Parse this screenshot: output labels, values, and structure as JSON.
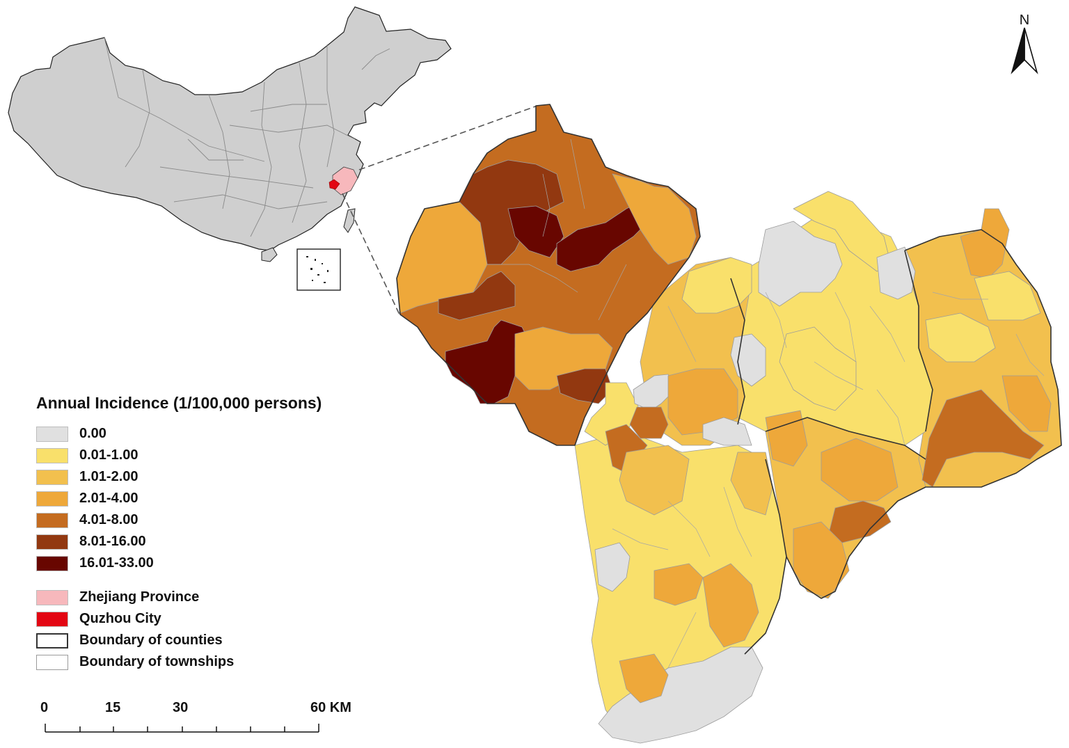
{
  "legend": {
    "title": "Annual Incidence (1/100,000 persons)",
    "classes": [
      {
        "label": "0.00",
        "color": "#e0e0e0"
      },
      {
        "label": "0.01-1.00",
        "color": "#f9e06b"
      },
      {
        "label": "1.01-2.00",
        "color": "#f2c04e"
      },
      {
        "label": "2.01-4.00",
        "color": "#eea83a"
      },
      {
        "label": "4.01-8.00",
        "color": "#c46c20"
      },
      {
        "label": "8.01-16.00",
        "color": "#923810"
      },
      {
        "label": "16.01-33.00",
        "color": "#680600"
      }
    ],
    "overlays": [
      {
        "label": "Zhejiang Province",
        "fill": "#f7b8bc"
      },
      {
        "label": "Quzhou City",
        "fill": "#e30613"
      },
      {
        "label": "Boundary of counties",
        "fill": "#ffffff"
      },
      {
        "label": "Boundary of townships",
        "fill": "#ffffff"
      }
    ]
  },
  "scale_bar": {
    "ticks": [
      "0",
      "15",
      "30",
      "60 KM"
    ]
  },
  "north_arrow": {
    "label": "N"
  },
  "inset_map": {
    "country_fill": "#cfcfcf",
    "province": "Zhejiang Province",
    "city": "Quzhou City"
  }
}
